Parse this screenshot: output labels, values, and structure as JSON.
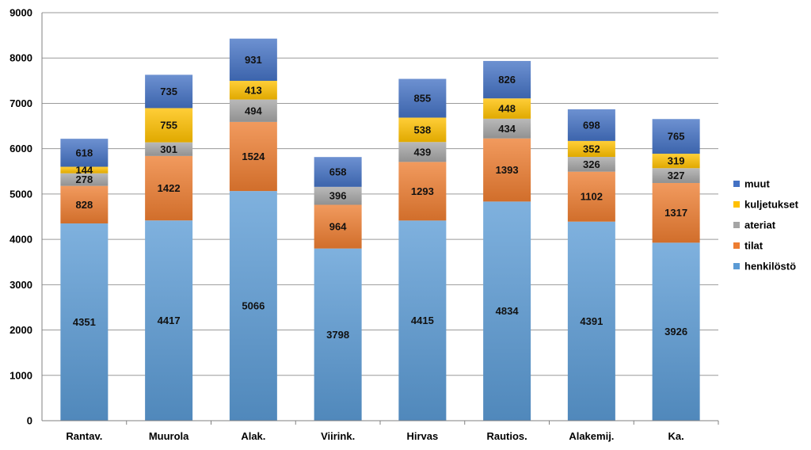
{
  "chart_data": {
    "type": "bar",
    "stacked": true,
    "categories": [
      "Rantav.",
      "Muurola",
      "Alak.",
      "Viirink.",
      "Hirvas",
      "Rautios.",
      "Alakemij.",
      "Ka."
    ],
    "series": [
      {
        "name": "henkilöstö",
        "color": "#5b9bd5",
        "values": [
          4351,
          4417,
          5066,
          3798,
          4415,
          4834,
          4391,
          3926
        ]
      },
      {
        "name": "tilat",
        "color": "#ed7d31",
        "values": [
          828,
          1422,
          1524,
          964,
          1293,
          1393,
          1102,
          1317
        ]
      },
      {
        "name": "ateriat",
        "color": "#a5a5a5",
        "values": [
          278,
          301,
          494,
          396,
          439,
          434,
          326,
          327
        ]
      },
      {
        "name": "kuljetukset",
        "color": "#ffc000",
        "values": [
          144,
          755,
          413,
          null,
          538,
          448,
          352,
          319
        ]
      },
      {
        "name": "muut",
        "color": "#4472c4",
        "values": [
          618,
          735,
          931,
          658,
          855,
          826,
          698,
          765
        ]
      }
    ],
    "ylim": [
      0,
      9000
    ],
    "yticks": [
      0,
      1000,
      2000,
      3000,
      4000,
      5000,
      6000,
      7000,
      8000,
      9000
    ],
    "grid": true,
    "legend_position": "right"
  }
}
